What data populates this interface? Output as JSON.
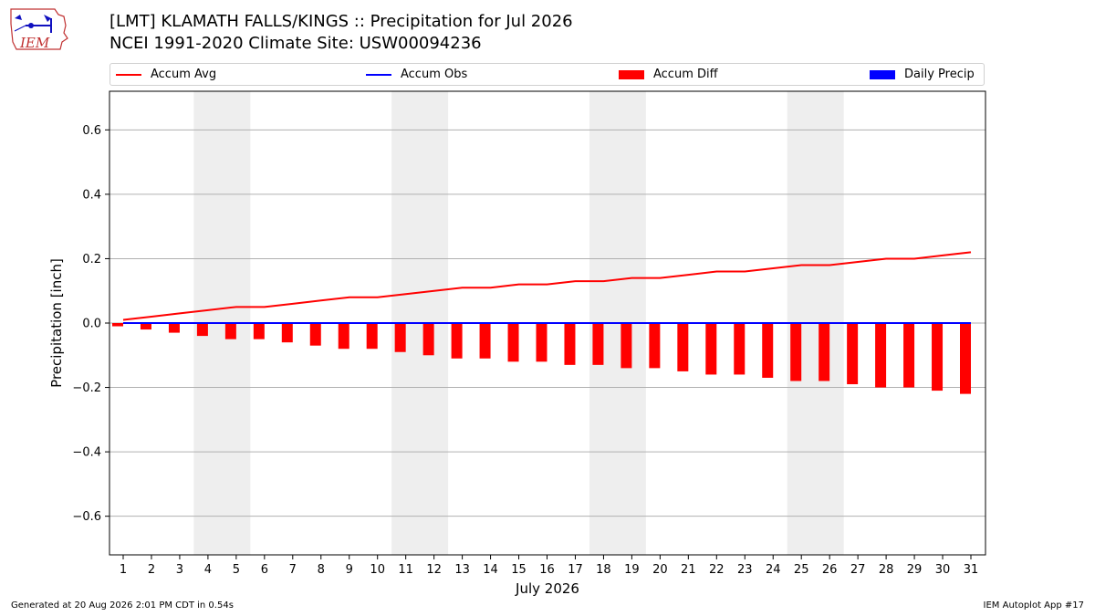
{
  "header": {
    "title_line1": "[LMT] KLAMATH FALLS/KINGS :: Precipitation for Jul 2026",
    "title_line2": "NCEI 1991-2020 Climate Site: USW00094236",
    "logo_text": "IEM"
  },
  "legend": [
    {
      "label": "Accum Avg",
      "color": "#ff0000",
      "kind": "line"
    },
    {
      "label": "Accum Obs",
      "color": "#0000ff",
      "kind": "line"
    },
    {
      "label": "Accum Diff",
      "color": "#ff0000",
      "kind": "box"
    },
    {
      "label": "Daily Precip",
      "color": "#0000ff",
      "kind": "box"
    }
  ],
  "footer": {
    "generated": "Generated at 20 Aug 2026 2:01 PM CDT in 0.54s",
    "app": "IEM Autoplot App #17"
  },
  "chart_data": {
    "type": "bar",
    "xlabel": "July 2026",
    "ylabel": "Precipitation [inch]",
    "ylim": [
      -0.72,
      0.72
    ],
    "yticks": [
      -0.6,
      -0.4,
      -0.2,
      0.0,
      0.2,
      0.4,
      0.6
    ],
    "ytick_labels": [
      "−0.6",
      "−0.4",
      "−0.2",
      "0.0",
      "0.2",
      "0.4",
      "0.6"
    ],
    "grid": "horizontal",
    "weekend_shading": [
      [
        4,
        5
      ],
      [
        11,
        12
      ],
      [
        18,
        19
      ],
      [
        25,
        26
      ]
    ],
    "weekend_color": "#eeeeee",
    "categories": [
      1,
      2,
      3,
      4,
      5,
      6,
      7,
      8,
      9,
      10,
      11,
      12,
      13,
      14,
      15,
      16,
      17,
      18,
      19,
      20,
      21,
      22,
      23,
      24,
      25,
      26,
      27,
      28,
      29,
      30,
      31
    ],
    "series": [
      {
        "name": "Accum Avg",
        "type": "line",
        "color": "#ff0000",
        "values": [
          0.01,
          0.02,
          0.03,
          0.04,
          0.05,
          0.05,
          0.06,
          0.07,
          0.08,
          0.08,
          0.09,
          0.1,
          0.11,
          0.11,
          0.12,
          0.12,
          0.13,
          0.13,
          0.14,
          0.14,
          0.15,
          0.16,
          0.16,
          0.17,
          0.18,
          0.18,
          0.19,
          0.2,
          0.2,
          0.21,
          0.22
        ]
      },
      {
        "name": "Accum Obs",
        "type": "line",
        "color": "#0000ff",
        "values": [
          0,
          0,
          0,
          0,
          0,
          0,
          0,
          0,
          0,
          0,
          0,
          0,
          0,
          0,
          0,
          0,
          0,
          0,
          0,
          0,
          0,
          0,
          0,
          0,
          0,
          0,
          0,
          0,
          0,
          0,
          0
        ]
      },
      {
        "name": "Accum Diff",
        "type": "bar",
        "color": "#ff0000",
        "values": [
          -0.01,
          -0.02,
          -0.03,
          -0.04,
          -0.05,
          -0.05,
          -0.06,
          -0.07,
          -0.08,
          -0.08,
          -0.09,
          -0.1,
          -0.11,
          -0.11,
          -0.12,
          -0.12,
          -0.13,
          -0.13,
          -0.14,
          -0.14,
          -0.15,
          -0.16,
          -0.16,
          -0.17,
          -0.18,
          -0.18,
          -0.19,
          -0.2,
          -0.2,
          -0.21,
          -0.22
        ]
      },
      {
        "name": "Daily Precip",
        "type": "bar",
        "color": "#0000ff",
        "values": [
          0,
          0,
          0,
          0,
          0,
          0,
          0,
          0,
          0,
          0,
          0,
          0,
          0,
          0,
          0,
          0,
          0,
          0,
          0,
          0,
          0,
          0,
          0,
          0,
          0,
          0,
          0,
          0,
          0,
          0,
          0
        ]
      }
    ]
  }
}
